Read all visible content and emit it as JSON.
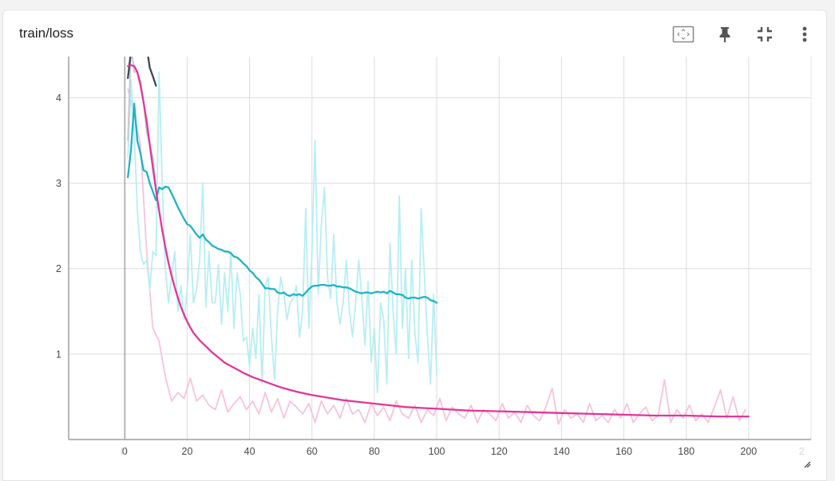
{
  "card": {
    "title": "train/loss",
    "toolbar": [
      {
        "name": "fit-domain-button",
        "icon": "fit-to-data-icon"
      },
      {
        "name": "pin-button",
        "icon": "pin-icon"
      },
      {
        "name": "collapse-button",
        "icon": "collapse-icon"
      },
      {
        "name": "more-options-button",
        "icon": "more-vertical-icon"
      }
    ]
  },
  "chart_data": {
    "type": "line",
    "title": "train/loss",
    "xlabel": "",
    "ylabel": "",
    "xlim": [
      -18,
      220
    ],
    "ylim": [
      0,
      4.48
    ],
    "grid": true,
    "x_ticks": [
      0,
      20,
      40,
      60,
      80,
      100,
      120,
      140,
      160,
      180,
      200
    ],
    "x_tick_labels": [
      "0",
      "20",
      "40",
      "60",
      "80",
      "100",
      "120",
      "140",
      "160",
      "180",
      "200"
    ],
    "x_faint_ticks": [
      {
        "value": -0.5,
        "label": "0"
      },
      {
        "value": 217,
        "label": "2"
      }
    ],
    "y_ticks": [
      1,
      2,
      3,
      4
    ],
    "y_tick_labels": [
      "1",
      "2",
      "3",
      "4"
    ],
    "colors": {
      "magenta": "#e3359a",
      "magenta_raw": "#f6c3dc",
      "cyan": "#1fb3c6",
      "cyan_raw": "#b7eef3",
      "dark": "#3d4756",
      "dark_raw": "#c4c8ce"
    },
    "series": [
      {
        "color": "magenta_raw",
        "kind": "raw",
        "x": [
          1,
          3,
          5,
          7,
          9,
          11,
          13,
          15,
          17,
          19,
          21,
          23,
          25,
          27,
          29,
          31,
          33,
          35,
          37,
          39,
          41,
          43,
          45,
          47,
          49,
          51,
          53,
          55,
          57,
          59,
          61,
          63,
          65,
          67,
          69,
          71,
          73,
          75,
          77,
          79,
          81,
          83,
          85,
          87,
          89,
          91,
          93,
          95,
          97,
          99,
          101,
          103,
          105,
          107,
          109,
          111,
          113,
          115,
          117,
          119,
          121,
          123,
          125,
          127,
          129,
          131,
          133,
          135,
          137,
          139,
          141,
          143,
          145,
          147,
          149,
          151,
          153,
          155,
          157,
          159,
          161,
          163,
          165,
          167,
          169,
          171,
          173,
          175,
          177,
          179,
          181,
          183,
          185,
          187,
          189,
          191,
          193,
          195,
          197,
          199
        ],
        "values": [
          4.1,
          3.8,
          3.45,
          2.2,
          1.3,
          1.15,
          0.74,
          0.45,
          0.55,
          0.48,
          0.72,
          0.45,
          0.52,
          0.4,
          0.35,
          0.58,
          0.32,
          0.42,
          0.5,
          0.35,
          0.45,
          0.3,
          0.55,
          0.32,
          0.48,
          0.25,
          0.45,
          0.38,
          0.3,
          0.42,
          0.2,
          0.45,
          0.3,
          0.4,
          0.25,
          0.48,
          0.3,
          0.35,
          0.2,
          0.42,
          0.28,
          0.38,
          0.22,
          0.45,
          0.3,
          0.25,
          0.4,
          0.2,
          0.35,
          0.28,
          0.48,
          0.22,
          0.38,
          0.3,
          0.25,
          0.4,
          0.2,
          0.35,
          0.3,
          0.22,
          0.42,
          0.25,
          0.32,
          0.2,
          0.4,
          0.28,
          0.22,
          0.38,
          0.6,
          0.18,
          0.35,
          0.25,
          0.3,
          0.2,
          0.42,
          0.22,
          0.28,
          0.2,
          0.35,
          0.25,
          0.42,
          0.2,
          0.3,
          0.38,
          0.22,
          0.28,
          0.7,
          0.2,
          0.35,
          0.25,
          0.4,
          0.22,
          0.3,
          0.2,
          0.38,
          0.58,
          0.25,
          0.5,
          0.22,
          0.35
        ]
      },
      {
        "color": "cyan_raw",
        "kind": "raw",
        "x": [
          1,
          2,
          3,
          4,
          5,
          6,
          7,
          8,
          9,
          10,
          11,
          12,
          13,
          14,
          15,
          16,
          17,
          18,
          19,
          20,
          21,
          22,
          23,
          24,
          25,
          26,
          27,
          28,
          29,
          30,
          31,
          32,
          33,
          34,
          35,
          36,
          37,
          38,
          39,
          40,
          41,
          42,
          43,
          44,
          45,
          46,
          47,
          48,
          49,
          50,
          51,
          52,
          53,
          54,
          55,
          56,
          57,
          58,
          59,
          60,
          61,
          62,
          63,
          64,
          65,
          66,
          67,
          68,
          69,
          70,
          71,
          72,
          73,
          74,
          75,
          76,
          77,
          78,
          79,
          80,
          81,
          82,
          83,
          84,
          85,
          86,
          87,
          88,
          89,
          90,
          91,
          92,
          93,
          94,
          95,
          96,
          97,
          98,
          99,
          100
        ],
        "values": [
          3.3,
          4.2,
          3.6,
          2.7,
          2.2,
          2.05,
          2.1,
          1.75,
          2.2,
          2.15,
          4.3,
          3.0,
          2.0,
          1.6,
          1.9,
          2.2,
          1.5,
          1.8,
          1.4,
          1.75,
          2.4,
          1.6,
          1.75,
          2.1,
          3.0,
          1.55,
          2.2,
          1.6,
          1.6,
          2.05,
          1.35,
          1.95,
          1.5,
          2.2,
          1.3,
          1.95,
          1.7,
          1.15,
          1.2,
          0.85,
          1.3,
          0.95,
          1.7,
          0.65,
          1.8,
          1.9,
          1.2,
          0.7,
          1.5,
          1.9,
          1.7,
          1.4,
          1.6,
          1.65,
          1.8,
          1.2,
          1.5,
          2.7,
          1.3,
          2.2,
          3.5,
          1.7,
          2.5,
          2.95,
          1.9,
          1.65,
          2.4,
          1.6,
          1.35,
          1.6,
          2.1,
          1.5,
          1.2,
          1.6,
          2.1,
          1.65,
          1.1,
          1.85,
          0.9,
          1.3,
          0.55,
          1.6,
          1.4,
          0.65,
          2.3,
          1.5,
          1.0,
          2.85,
          1.3,
          2.0,
          0.95,
          2.1,
          1.25,
          0.9,
          2.7,
          1.95,
          1.2,
          0.65,
          1.7,
          0.75
        ]
      },
      {
        "color": "dark_raw",
        "kind": "raw",
        "x": [
          1,
          2,
          3,
          4,
          5,
          6,
          7,
          8,
          9,
          10
        ],
        "values": [
          3.5,
          4.6,
          4.3,
          4.3,
          4.2,
          3.95,
          3.6,
          3.45,
          3.3,
          2.95
        ]
      },
      {
        "color": "cyan",
        "kind": "smoothed",
        "x": [
          1,
          2,
          3,
          4,
          5,
          6,
          7,
          8,
          9,
          10,
          11,
          12,
          13,
          14,
          15,
          16,
          17,
          18,
          19,
          20,
          21,
          22,
          23,
          24,
          25,
          26,
          27,
          28,
          29,
          30,
          31,
          32,
          33,
          34,
          35,
          36,
          37,
          38,
          39,
          40,
          41,
          42,
          43,
          44,
          45,
          46,
          47,
          48,
          49,
          50,
          51,
          52,
          53,
          54,
          55,
          56,
          57,
          58,
          59,
          60,
          61,
          62,
          63,
          64,
          65,
          66,
          67,
          68,
          69,
          70,
          71,
          72,
          73,
          74,
          75,
          76,
          77,
          78,
          79,
          80,
          81,
          82,
          83,
          84,
          85,
          86,
          87,
          88,
          89,
          90,
          91,
          92,
          93,
          94,
          95,
          96,
          97,
          98,
          99,
          100
        ],
        "values": [
          3.07,
          3.4,
          3.93,
          3.5,
          3.35,
          3.15,
          3.13,
          3.0,
          2.9,
          2.8,
          2.95,
          2.93,
          2.96,
          2.95,
          2.88,
          2.8,
          2.72,
          2.65,
          2.58,
          2.52,
          2.5,
          2.45,
          2.4,
          2.36,
          2.4,
          2.34,
          2.31,
          2.27,
          2.25,
          2.23,
          2.22,
          2.2,
          2.2,
          2.18,
          2.14,
          2.13,
          2.1,
          2.06,
          2.03,
          1.98,
          1.95,
          1.9,
          1.87,
          1.82,
          1.77,
          1.77,
          1.76,
          1.76,
          1.72,
          1.71,
          1.72,
          1.69,
          1.68,
          1.7,
          1.69,
          1.7,
          1.68,
          1.72,
          1.76,
          1.79,
          1.8,
          1.8,
          1.81,
          1.81,
          1.8,
          1.8,
          1.81,
          1.79,
          1.79,
          1.78,
          1.78,
          1.77,
          1.75,
          1.73,
          1.72,
          1.71,
          1.72,
          1.72,
          1.71,
          1.72,
          1.73,
          1.72,
          1.73,
          1.71,
          1.74,
          1.72,
          1.7,
          1.7,
          1.69,
          1.66,
          1.65,
          1.66,
          1.66,
          1.65,
          1.66,
          1.67,
          1.66,
          1.63,
          1.62,
          1.6
        ]
      },
      {
        "color": "dark",
        "kind": "smoothed",
        "x": [
          1,
          2,
          3,
          4,
          5,
          6,
          7,
          8,
          9,
          10
        ],
        "values": [
          4.23,
          4.55,
          4.8,
          4.95,
          4.9,
          4.75,
          4.6,
          4.35,
          4.25,
          4.14
        ]
      },
      {
        "color": "magenta",
        "kind": "smoothed",
        "x": [
          1,
          2,
          3,
          4,
          5,
          6,
          7,
          8,
          9,
          10,
          11,
          12,
          13,
          14,
          15,
          16,
          17,
          18,
          19,
          20,
          21,
          22,
          24,
          26,
          28,
          30,
          32,
          35,
          38,
          41,
          44,
          47,
          50,
          55,
          60,
          65,
          70,
          75,
          80,
          85,
          90,
          95,
          100,
          110,
          120,
          130,
          140,
          150,
          160,
          170,
          180,
          190,
          200
        ],
        "values": [
          4.37,
          4.38,
          4.37,
          4.3,
          4.15,
          3.95,
          3.72,
          3.45,
          3.18,
          2.92,
          2.68,
          2.45,
          2.25,
          2.07,
          1.92,
          1.78,
          1.66,
          1.55,
          1.46,
          1.38,
          1.31,
          1.25,
          1.16,
          1.09,
          1.02,
          0.96,
          0.9,
          0.84,
          0.78,
          0.73,
          0.69,
          0.65,
          0.61,
          0.56,
          0.52,
          0.49,
          0.46,
          0.44,
          0.42,
          0.4,
          0.38,
          0.37,
          0.36,
          0.34,
          0.33,
          0.32,
          0.31,
          0.3,
          0.29,
          0.28,
          0.28,
          0.27,
          0.27
        ]
      }
    ]
  }
}
